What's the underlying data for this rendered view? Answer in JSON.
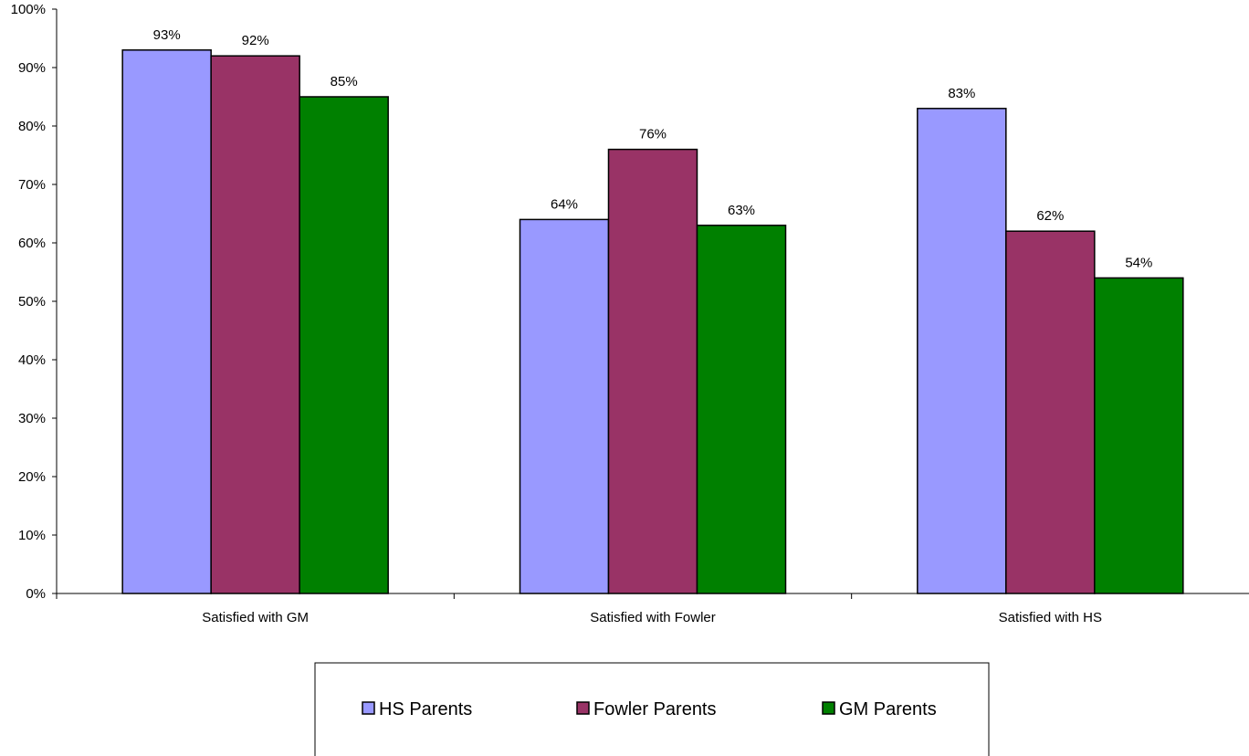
{
  "chart_data": {
    "type": "bar",
    "categories": [
      "Satisfied with GM",
      "Satisfied with Fowler",
      "Satisfied with HS"
    ],
    "series": [
      {
        "name": "HS Parents",
        "values": [
          93,
          64,
          83
        ],
        "labels": [
          "93%",
          "64%",
          "83%"
        ],
        "color": "#9999ff"
      },
      {
        "name": "Fowler Parents",
        "values": [
          92,
          76,
          62
        ],
        "labels": [
          "92%",
          "76%",
          "62%"
        ],
        "color": "#993366"
      },
      {
        "name": "GM Parents",
        "values": [
          85,
          63,
          54
        ],
        "labels": [
          "85%",
          "63%",
          "54%"
        ],
        "color": "#008000"
      }
    ],
    "ylim": [
      0,
      100
    ],
    "yticks": [
      "0%",
      "10%",
      "20%",
      "30%",
      "40%",
      "50%",
      "60%",
      "70%",
      "80%",
      "90%",
      "100%"
    ],
    "grid": false,
    "legend_position": "bottom",
    "title": "",
    "xlabel": "",
    "ylabel": ""
  }
}
